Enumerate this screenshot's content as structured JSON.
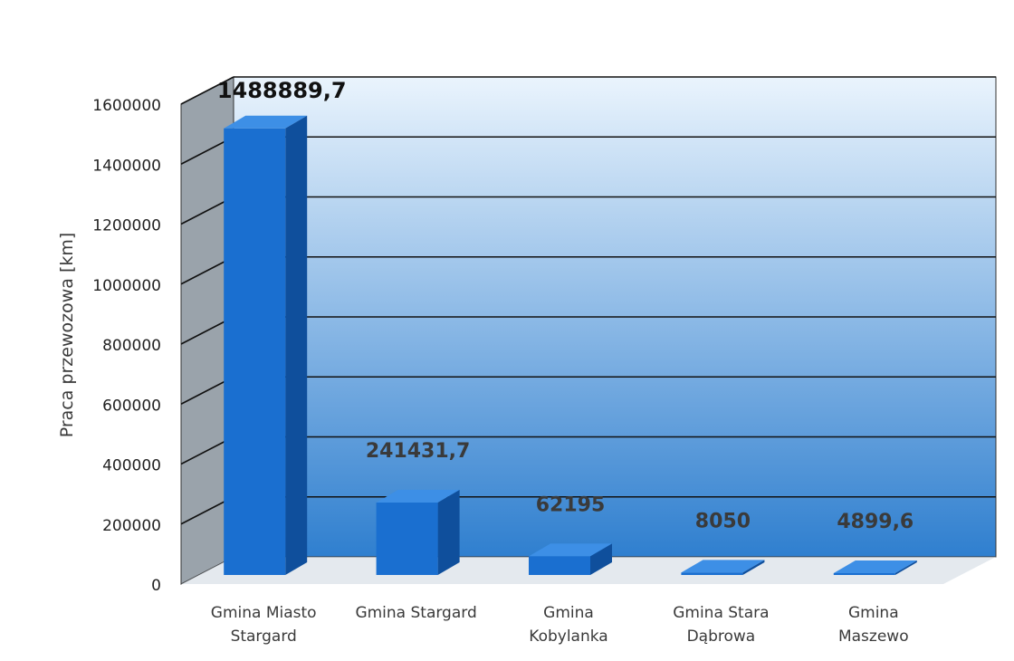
{
  "chart_data": {
    "type": "bar",
    "style": "3d",
    "categories": [
      [
        "Gmina Miasto",
        "Stargard"
      ],
      [
        "Gmina Stargard"
      ],
      [
        "Gmina",
        "Kobylanka"
      ],
      [
        "Gmina Stara",
        "Dąbrowa"
      ],
      [
        "Gmina",
        "Maszewo"
      ]
    ],
    "values": [
      1488889.7,
      241431.7,
      62195,
      8050,
      4899.6
    ],
    "data_labels": [
      "1488889,7",
      "241431,7",
      "62195",
      "8050",
      "4899,6"
    ],
    "ylabel": "Praca przewozowa [km]",
    "ylim": [
      0,
      1600000
    ],
    "yticks": [
      0,
      200000,
      400000,
      600000,
      800000,
      1000000,
      1200000,
      1400000,
      1600000
    ],
    "grid": true,
    "legend": "none",
    "colors": {
      "bar_front": "#1a6fd0",
      "bar_side": "#0f4f9c",
      "bar_top": "#3d8fe6",
      "wall_top": "#eaf4fd",
      "wall_bottom": "#2f7fcf",
      "side_wall": "#9aa3ab",
      "floor": "#c9d4de",
      "gridline": "#111111",
      "tick_text": "#222222",
      "label_text": "#3a3a3a"
    }
  }
}
